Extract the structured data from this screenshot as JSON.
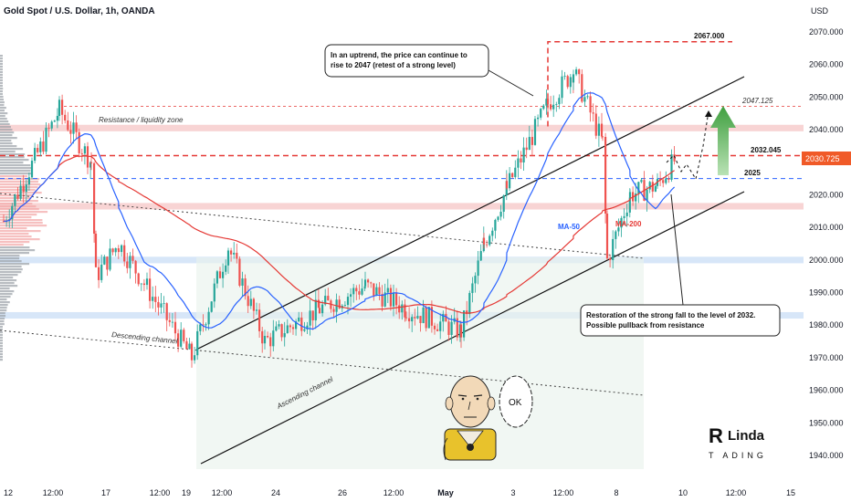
{
  "header": {
    "title": "Gold Spot / U.S. Dollar, 1h, OANDA",
    "currency": "USD"
  },
  "price_axis": {
    "ticks": [
      "2070.000",
      "2060.000",
      "2050.000",
      "2040.000",
      "2030.000",
      "2020.000",
      "2010.000",
      "2000.000",
      "1990.000",
      "1980.000",
      "1970.000",
      "1960.000",
      "1950.000",
      "1940.000"
    ],
    "current_price": "2030.725"
  },
  "time_axis": {
    "ticks": [
      "12",
      "12:00",
      "17",
      "12:00",
      "19",
      "12:00",
      "24",
      "26",
      "12:00",
      "May",
      "3",
      "12:00",
      "8",
      "10",
      "12:00",
      "15"
    ]
  },
  "levels": {
    "top": "2067.000",
    "target": "2047.125",
    "resistance": "2032.045",
    "support": "2025"
  },
  "annotations": {
    "callout_top": "In an uptrend, the price can continue to rise to 2047 (retest of a strong level)",
    "callout_bottom": "Restoration of the strong fall to the level of 2032. Possible pullback from resistance",
    "resistance_zone": "Resistance / liquidity zone",
    "descending_channel": "Descending channel",
    "ascending_channel": "Ascending channel",
    "ma50": "MA-50",
    "ma200": "MA-200",
    "speech": "OK"
  },
  "brand": {
    "logo_text": "RLinda TRADING"
  },
  "colors": {
    "up": "#26a69a",
    "down": "#ef5350",
    "ma50": "#2962ff",
    "ma200": "#e53935",
    "level_red": "#e53935",
    "level_blue": "#2962ff",
    "zone_red": "#f6c6c6",
    "zone_blue": "#c9def5",
    "arrow_green": "#43a047",
    "current_price_bg": "#f05a28"
  },
  "chart_data": {
    "type": "candlestick",
    "symbol": "XAUUSD",
    "timeframe": "1h",
    "ylim": [
      1937,
      2075
    ],
    "close_path": [
      {
        "t": "12",
        "price": 2012
      },
      {
        "t": "12:00",
        "price": 2046
      },
      {
        "t": "17",
        "price": 2030
      },
      {
        "t": "17",
        "price": 1995
      },
      {
        "t": "",
        "price": 2005
      },
      {
        "t": "19",
        "price": 1970
      },
      {
        "t": "12:00",
        "price": 2004
      },
      {
        "t": "24",
        "price": 1975
      },
      {
        "t": "",
        "price": 1985
      },
      {
        "t": "26",
        "price": 1992
      },
      {
        "t": "12:00",
        "price": 1985
      },
      {
        "t": "May",
        "price": 1978
      },
      {
        "t": "",
        "price": 2005
      },
      {
        "t": "3",
        "price": 2022
      },
      {
        "t": "",
        "price": 2048
      },
      {
        "t": "12:00",
        "price": 2058
      },
      {
        "t": "",
        "price": 2036
      },
      {
        "t": "8",
        "price": 2000
      },
      {
        "t": "",
        "price": 2020
      },
      {
        "t": "",
        "price": 2023
      },
      {
        "t": "10",
        "price": 2031
      }
    ],
    "last_price": 2030.725,
    "levels": [
      2067.0,
      2047.125,
      2032.045,
      2025
    ],
    "zones": [
      {
        "type": "resistance / liquidity",
        "range": [
          2039.5,
          2041.5
        ]
      },
      {
        "type": "support",
        "range": [
          1999,
          2001
        ]
      },
      {
        "type": "support",
        "range": [
          1982,
          1984
        ]
      },
      {
        "type": "support",
        "range": [
          2015.5,
          2017.5
        ]
      }
    ],
    "indicators": [
      "MA-50",
      "MA-200"
    ],
    "projection": [
      2025,
      2032,
      2024,
      2031,
      2047
    ]
  }
}
